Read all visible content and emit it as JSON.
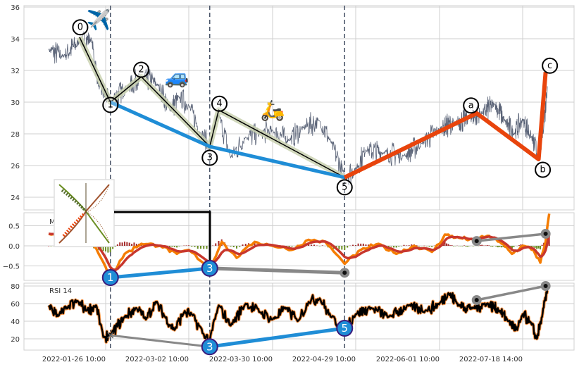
{
  "chart_data": {
    "type": "line",
    "title": "",
    "x_ticks": [
      "2022-01-26 10:00",
      "2022-03-02 10:00",
      "2022-03-30 10:00",
      "2022-04-29 10:00",
      "2022-06-01 10:00",
      "2022-07-18 14:00"
    ],
    "grid": true,
    "panels": [
      {
        "name": "price",
        "ylim": [
          23,
          36
        ],
        "y_ticks": [
          "24",
          "26",
          "28",
          "30",
          "32",
          "34",
          "36"
        ],
        "y_tick_values": [
          24,
          26,
          28,
          30,
          32,
          34,
          36
        ],
        "series_anchors": [
          [
            "2022-01-02",
            33.3
          ],
          [
            "2022-01-08",
            32.9
          ],
          [
            "2022-01-15",
            33.8
          ],
          [
            "2022-01-20",
            34.0
          ],
          [
            "2022-01-23",
            31.0
          ],
          [
            "2022-01-28",
            30.1
          ],
          [
            "2022-02-04",
            30.9
          ],
          [
            "2022-02-10",
            31.6
          ],
          [
            "2022-02-17",
            31.1
          ],
          [
            "2022-02-22",
            29.5
          ],
          [
            "2022-02-26",
            30.3
          ],
          [
            "2022-03-02",
            29.8
          ],
          [
            "2022-03-06",
            28.0
          ],
          [
            "2022-03-09",
            27.2
          ],
          [
            "2022-03-12",
            29.2
          ],
          [
            "2022-03-16",
            26.5
          ],
          [
            "2022-03-21",
            27.8
          ],
          [
            "2022-03-26",
            28.0
          ],
          [
            "2022-03-30",
            28.2
          ],
          [
            "2022-04-05",
            27.6
          ],
          [
            "2022-04-10",
            28.4
          ],
          [
            "2022-04-16",
            28.8
          ],
          [
            "2022-04-20",
            27.5
          ],
          [
            "2022-04-25",
            25.3
          ],
          [
            "2022-04-29",
            25.8
          ],
          [
            "2022-05-03",
            27.0
          ],
          [
            "2022-05-10",
            26.8
          ],
          [
            "2022-05-18",
            26.6
          ],
          [
            "2022-05-25",
            27.4
          ],
          [
            "2022-06-01",
            28.3
          ],
          [
            "2022-06-10",
            28.7
          ],
          [
            "2022-06-18",
            29.0
          ],
          [
            "2022-06-25",
            29.3
          ],
          [
            "2022-07-02",
            29.9
          ],
          [
            "2022-07-08",
            28.8
          ],
          [
            "2022-07-13",
            28.0
          ],
          [
            "2022-07-18",
            28.9
          ],
          [
            "2022-07-23",
            27.8
          ],
          [
            "2022-07-27",
            26.5
          ],
          [
            "2022-07-30",
            28.5
          ],
          [
            "2022-08-01",
            31.0
          ]
        ],
        "waves": [
          {
            "label": "0",
            "date": "2022-01-15",
            "value": 34.1
          },
          {
            "label": "1",
            "date": "2022-01-28",
            "value": 30.0
          },
          {
            "label": "2",
            "date": "2022-02-10",
            "value": 31.6
          },
          {
            "label": "3",
            "date": "2022-03-09",
            "value": 27.2
          },
          {
            "label": "4",
            "date": "2022-03-12",
            "value": 29.5
          },
          {
            "label": "5",
            "date": "2022-04-25",
            "value": 25.25
          },
          {
            "label": "a",
            "date": "2022-06-22",
            "value": 29.3
          },
          {
            "label": "b",
            "date": "2022-07-27",
            "value": 26.4
          },
          {
            "label": "c",
            "date": "2022-07-31",
            "value": 31.9
          }
        ],
        "impulse_line_color": "#000000",
        "channel_color": "#1f8dd6",
        "correction_color": "#e8440c",
        "price_color": "#5a6377",
        "emoji_icons": [
          {
            "icon": "airplane-icon",
            "glyph": "✈️",
            "date": "2022-01-23",
            "value": 35.2
          },
          {
            "icon": "car-icon",
            "glyph": "🚙",
            "date": "2022-02-25",
            "value": 31.6
          },
          {
            "icon": "scooter-icon",
            "glyph": "🛵",
            "date": "2022-03-30",
            "value": 29.5
          }
        ]
      },
      {
        "name": "macd",
        "title": "MACD (12,26,9)",
        "ylim": [
          -0.86,
          0.82
        ],
        "y_ticks": [
          "−0.5",
          "0.0",
          "0.5"
        ],
        "y_tick_values": [
          -0.5,
          0,
          0.5
        ],
        "macd_color": "#f57c00",
        "signal_color": "#c8372d",
        "hist_pos_color": "#a52a2a",
        "hist_neg_color": "#6b8e23",
        "series_anchors": [
          [
            "2022-01-02",
            0.3
          ],
          [
            "2022-01-08",
            0.22
          ],
          [
            "2022-01-20",
            0.12
          ],
          [
            "2022-01-24",
            -0.3
          ],
          [
            "2022-01-28",
            -0.8
          ],
          [
            "2022-02-03",
            -0.2
          ],
          [
            "2022-02-10",
            0.05
          ],
          [
            "2022-02-18",
            0.0
          ],
          [
            "2022-02-25",
            -0.2
          ],
          [
            "2022-03-02",
            -0.1
          ],
          [
            "2022-03-09",
            -0.55
          ],
          [
            "2022-03-13",
            0.1
          ],
          [
            "2022-03-18",
            -0.3
          ],
          [
            "2022-03-24",
            0.1
          ],
          [
            "2022-03-30",
            0.0
          ],
          [
            "2022-04-06",
            -0.1
          ],
          [
            "2022-04-12",
            0.15
          ],
          [
            "2022-04-18",
            0.1
          ],
          [
            "2022-04-25",
            -0.45
          ],
          [
            "2022-05-01",
            -0.1
          ],
          [
            "2022-05-08",
            0.05
          ],
          [
            "2022-05-15",
            -0.2
          ],
          [
            "2022-05-22",
            0.0
          ],
          [
            "2022-05-29",
            -0.15
          ],
          [
            "2022-06-04",
            0.28
          ],
          [
            "2022-06-12",
            0.2
          ],
          [
            "2022-06-20",
            0.15
          ],
          [
            "2022-06-28",
            0.25
          ],
          [
            "2022-07-05",
            0.1
          ],
          [
            "2022-07-12",
            -0.2
          ],
          [
            "2022-07-18",
            0.0
          ],
          [
            "2022-07-24",
            -0.1
          ],
          [
            "2022-07-28",
            -0.42
          ],
          [
            "2022-07-31",
            0.1
          ],
          [
            "2022-08-02",
            0.8
          ]
        ],
        "markers": [
          {
            "label": "1",
            "date": "2022-01-28",
            "value": -0.79,
            "style": "blue"
          },
          {
            "label": "3",
            "date": "2022-03-09",
            "value": -0.56,
            "style": "blue"
          },
          {
            "label": "",
            "date": "2022-04-25",
            "value": -0.67,
            "style": "gray"
          },
          {
            "label": "",
            "date": "2022-06-22",
            "value": 0.12,
            "style": "gray"
          },
          {
            "label": "",
            "date": "2022-07-31",
            "value": 0.3,
            "style": "gray"
          }
        ]
      },
      {
        "name": "rsi",
        "title": "RSI 14",
        "ylim": [
          6,
          83
        ],
        "y_ticks": [
          "20",
          "40",
          "60",
          "80"
        ],
        "y_tick_values": [
          20,
          40,
          60,
          80
        ],
        "line_color": "#000000",
        "outline_color": "#ff9a4d",
        "series_anchors": [
          [
            "2022-01-02",
            58
          ],
          [
            "2022-01-06",
            46
          ],
          [
            "2022-01-10",
            55
          ],
          [
            "2022-01-14",
            63
          ],
          [
            "2022-01-18",
            52
          ],
          [
            "2022-01-22",
            58
          ],
          [
            "2022-01-25",
            22
          ],
          [
            "2022-01-28",
            24
          ],
          [
            "2022-02-03",
            45
          ],
          [
            "2022-02-08",
            55
          ],
          [
            "2022-02-12",
            42
          ],
          [
            "2022-02-16",
            62
          ],
          [
            "2022-02-20",
            45
          ],
          [
            "2022-02-24",
            30
          ],
          [
            "2022-02-28",
            50
          ],
          [
            "2022-03-03",
            48
          ],
          [
            "2022-03-07",
            25
          ],
          [
            "2022-03-09",
            18
          ],
          [
            "2022-03-12",
            58
          ],
          [
            "2022-03-16",
            35
          ],
          [
            "2022-03-21",
            60
          ],
          [
            "2022-03-26",
            50
          ],
          [
            "2022-03-30",
            42
          ],
          [
            "2022-04-04",
            55
          ],
          [
            "2022-04-08",
            40
          ],
          [
            "2022-04-12",
            62
          ],
          [
            "2022-04-16",
            66
          ],
          [
            "2022-04-20",
            45
          ],
          [
            "2022-04-25",
            32
          ],
          [
            "2022-04-29",
            48
          ],
          [
            "2022-05-05",
            55
          ],
          [
            "2022-05-12",
            45
          ],
          [
            "2022-05-20",
            58
          ],
          [
            "2022-05-27",
            52
          ],
          [
            "2022-06-01",
            60
          ],
          [
            "2022-06-06",
            72
          ],
          [
            "2022-06-12",
            58
          ],
          [
            "2022-06-20",
            55
          ],
          [
            "2022-06-28",
            60
          ],
          [
            "2022-07-05",
            52
          ],
          [
            "2022-07-10",
            40
          ],
          [
            "2022-07-15",
            30
          ],
          [
            "2022-07-18",
            48
          ],
          [
            "2022-07-22",
            40
          ],
          [
            "2022-07-26",
            20
          ],
          [
            "2022-07-29",
            45
          ],
          [
            "2022-08-01",
            75
          ]
        ],
        "markers": [
          {
            "label": "",
            "date": "2022-01-28",
            "value": 24,
            "style": "x"
          },
          {
            "label": "3",
            "date": "2022-03-09",
            "value": 11,
            "style": "blue"
          },
          {
            "label": "5",
            "date": "2022-04-25",
            "value": 32,
            "style": "blue"
          },
          {
            "label": "",
            "date": "2022-06-22",
            "value": 64,
            "style": "gray"
          },
          {
            "label": "",
            "date": "2022-07-31",
            "value": 80,
            "style": "gray"
          }
        ]
      }
    ],
    "vertical_markers": [
      "2022-01-28",
      "2022-03-09",
      "2022-04-25"
    ]
  }
}
